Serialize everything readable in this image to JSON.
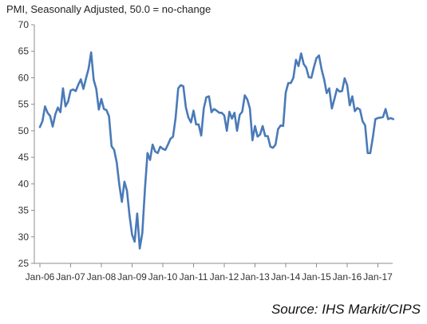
{
  "chart_data": {
    "type": "line",
    "title": "PMI, Seasonally Adjusted, 50.0 = no-change",
    "source": "Source: IHS Markit/CIPS",
    "xlabel": "",
    "ylabel": "",
    "ylim": [
      25,
      70
    ],
    "yticks": [
      25,
      30,
      35,
      40,
      45,
      50,
      55,
      60,
      65,
      70
    ],
    "xticks": [
      "Jan-06",
      "Jan-07",
      "Jan-08",
      "Jan-09",
      "Jan-10",
      "Jan-11",
      "Jan-12",
      "Jan-13",
      "Jan-14",
      "Jan-15",
      "Jan-16",
      "Jan-17"
    ],
    "grid": false,
    "line_color": "#4a7ab8",
    "series": [
      {
        "values": [
          50.7,
          51.8,
          54.6,
          53.4,
          52.8,
          50.8,
          53.1,
          54.4,
          53.5,
          58.0,
          54.6,
          55.5,
          57.6,
          57.8,
          57.5,
          58.7,
          59.7,
          57.9,
          59.9,
          61.7,
          64.8,
          59.6,
          57.9,
          54.0,
          56.0,
          54.1,
          53.9,
          52.7,
          47.1,
          46.4,
          44.0,
          39.8,
          36.6,
          40.4,
          38.7,
          34.0,
          30.4,
          29.1,
          34.4,
          27.8,
          30.7,
          38.8,
          45.8,
          44.5,
          47.4,
          46.1,
          45.8,
          47.0,
          46.6,
          46.4,
          47.4,
          48.5,
          48.9,
          52.4,
          58.0,
          58.6,
          58.4,
          54.4,
          52.5,
          51.6,
          53.8,
          51.2,
          51.2,
          49.1,
          54.2,
          56.3,
          56.5,
          53.5,
          54.1,
          53.8,
          53.4,
          53.4,
          52.9,
          50.0,
          53.6,
          52.3,
          53.4,
          50.0,
          53.0,
          53.6,
          56.7,
          55.9,
          54.2,
          48.2,
          50.9,
          48.9,
          49.3,
          50.9,
          49.0,
          49.0,
          47.0,
          46.8,
          47.4,
          50.3,
          51.0,
          50.9,
          57.2,
          59.0,
          59.0,
          60.0,
          63.4,
          62.2,
          64.6,
          62.6,
          61.9,
          60.1,
          60.0,
          62.0,
          63.7,
          64.2,
          61.6,
          59.7,
          57.1,
          58.0,
          54.2,
          56.0,
          57.9,
          57.4,
          57.5,
          59.9,
          58.6,
          54.8,
          56.5,
          53.7,
          54.3,
          54.0,
          51.8,
          51.0,
          45.8,
          45.8,
          48.7,
          52.2,
          52.4,
          52.5,
          52.6,
          54.1,
          52.2,
          52.4,
          52.2
        ]
      }
    ]
  }
}
